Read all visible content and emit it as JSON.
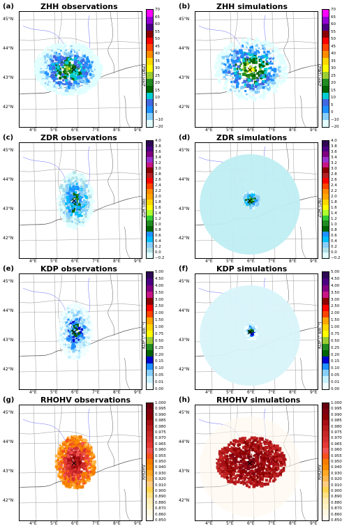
{
  "panels": [
    {
      "letter": "(a)",
      "title": "ZHH observations",
      "cbar_label": "ZHH (DbZ)",
      "scale": "zhh",
      "kind": "zhh-obs"
    },
    {
      "letter": "(b)",
      "title": "ZHH simulations",
      "cbar_label": "ZHH (DbZ)",
      "scale": "zhh",
      "kind": "zhh-sim"
    },
    {
      "letter": "(c)",
      "title": "ZDR observations",
      "cbar_label": "ZDR (dB)",
      "scale": "zdr",
      "kind": "zdr-obs"
    },
    {
      "letter": "(d)",
      "title": "ZDR simulations",
      "cbar_label": "ZDR (Db)",
      "scale": "zdr",
      "kind": "zdr-sim"
    },
    {
      "letter": "(e)",
      "title": "KDP observations",
      "cbar_label": "KDP (° km⁻¹)",
      "scale": "kdp",
      "kind": "kdp-obs"
    },
    {
      "letter": "(f)",
      "title": "KDP simulations",
      "cbar_label": "KDP (° km⁻¹)",
      "scale": "kdp",
      "kind": "kdp-sim"
    },
    {
      "letter": "(g)",
      "title": "RHOHV observations",
      "cbar_label": "RHOHV",
      "scale": "rho",
      "kind": "rho-obs"
    },
    {
      "letter": "(h)",
      "title": "RHOHV simulations",
      "cbar_label": "RHOHV",
      "scale": "rho",
      "kind": "rho-sim"
    }
  ],
  "lat_labels": [
    "45°N",
    "44°N",
    "43°N",
    "42°N"
  ],
  "lon_labels": [
    "4°E",
    "5°E",
    "6°E",
    "7°E",
    "8°E",
    "9°E"
  ],
  "scales": {
    "zhh": {
      "ticks": [
        "70",
        "65",
        "60",
        "55",
        "50",
        "45",
        "40",
        "35",
        "30",
        "25",
        "20",
        "15",
        "10",
        "5",
        "0",
        "−10",
        "−20"
      ],
      "colors": [
        "#ff00ff",
        "#9400d3",
        "#4b0082",
        "#8b0000",
        "#ff0000",
        "#ff4500",
        "#ff8c00",
        "#ffd700",
        "#ffff00",
        "#9acd32",
        "#228b22",
        "#006400",
        "#00ced1",
        "#4169e1",
        "#1e90ff",
        "#87cefa",
        "#e0ffff"
      ]
    },
    "zdr": {
      "ticks": [
        "4.0",
        "3.8",
        "3.6",
        "3.4",
        "3.2",
        "3.0",
        "2.8",
        "2.6",
        "2.4",
        "2.2",
        "2.0",
        "1.8",
        "1.6",
        "1.4",
        "1.2",
        "1.0",
        "0.8",
        "0.6",
        "0.4",
        "0.2",
        "0.0",
        "−0.2"
      ],
      "colors": [
        "#2e0854",
        "#4b0082",
        "#800080",
        "#9932cc",
        "#c71585",
        "#8b0000",
        "#b22222",
        "#ff0000",
        "#ff4500",
        "#ff8c00",
        "#ffa500",
        "#ffd700",
        "#ffff00",
        "#adff2f",
        "#32cd32",
        "#228b22",
        "#006400",
        "#1e90ff",
        "#00bfff",
        "#87cefa",
        "#b0e0e6",
        "#e0ffff"
      ]
    },
    "kdp": {
      "ticks": [
        "5.00",
        "4.50",
        "4.00",
        "3.50",
        "3.00",
        "2.50",
        "2.00",
        "1.50",
        "1.00",
        "0.75",
        "0.50",
        "0.25",
        "0.20",
        "0.15",
        "0.10",
        "0.05",
        "0.01",
        "0.00"
      ],
      "colors": [
        "#2e0854",
        "#4b0082",
        "#800080",
        "#c71585",
        "#8b0000",
        "#ff0000",
        "#ff4500",
        "#ffa500",
        "#ffd700",
        "#ffff00",
        "#9acd32",
        "#228b22",
        "#006400",
        "#0000cd",
        "#1e90ff",
        "#87cefa",
        "#c6f0ff",
        "#f0ffff"
      ]
    },
    "rho": {
      "ticks": [
        "1.000",
        "0.995",
        "0.990",
        "0.985",
        "0.980",
        "0.975",
        "0.970",
        "0.965",
        "0.960",
        "0.955",
        "0.950",
        "0.940",
        "0.930",
        "0.920",
        "0.910",
        "0.900",
        "0.890",
        "0.880",
        "0.870",
        "0.860",
        "0.850"
      ],
      "colors": [
        "#67000d",
        "#7f0011",
        "#8b0000",
        "#a50f15",
        "#b71c1c",
        "#c62828",
        "#d32f2f",
        "#e53935",
        "#ef5350",
        "#f4511e",
        "#f57c00",
        "#fb8c00",
        "#ffa726",
        "#ffb74d",
        "#ffcc80",
        "#ffd54f",
        "#ffe082",
        "#ffecb3",
        "#fff3c4",
        "#fff8e1",
        "#fffdf0"
      ]
    }
  }
}
